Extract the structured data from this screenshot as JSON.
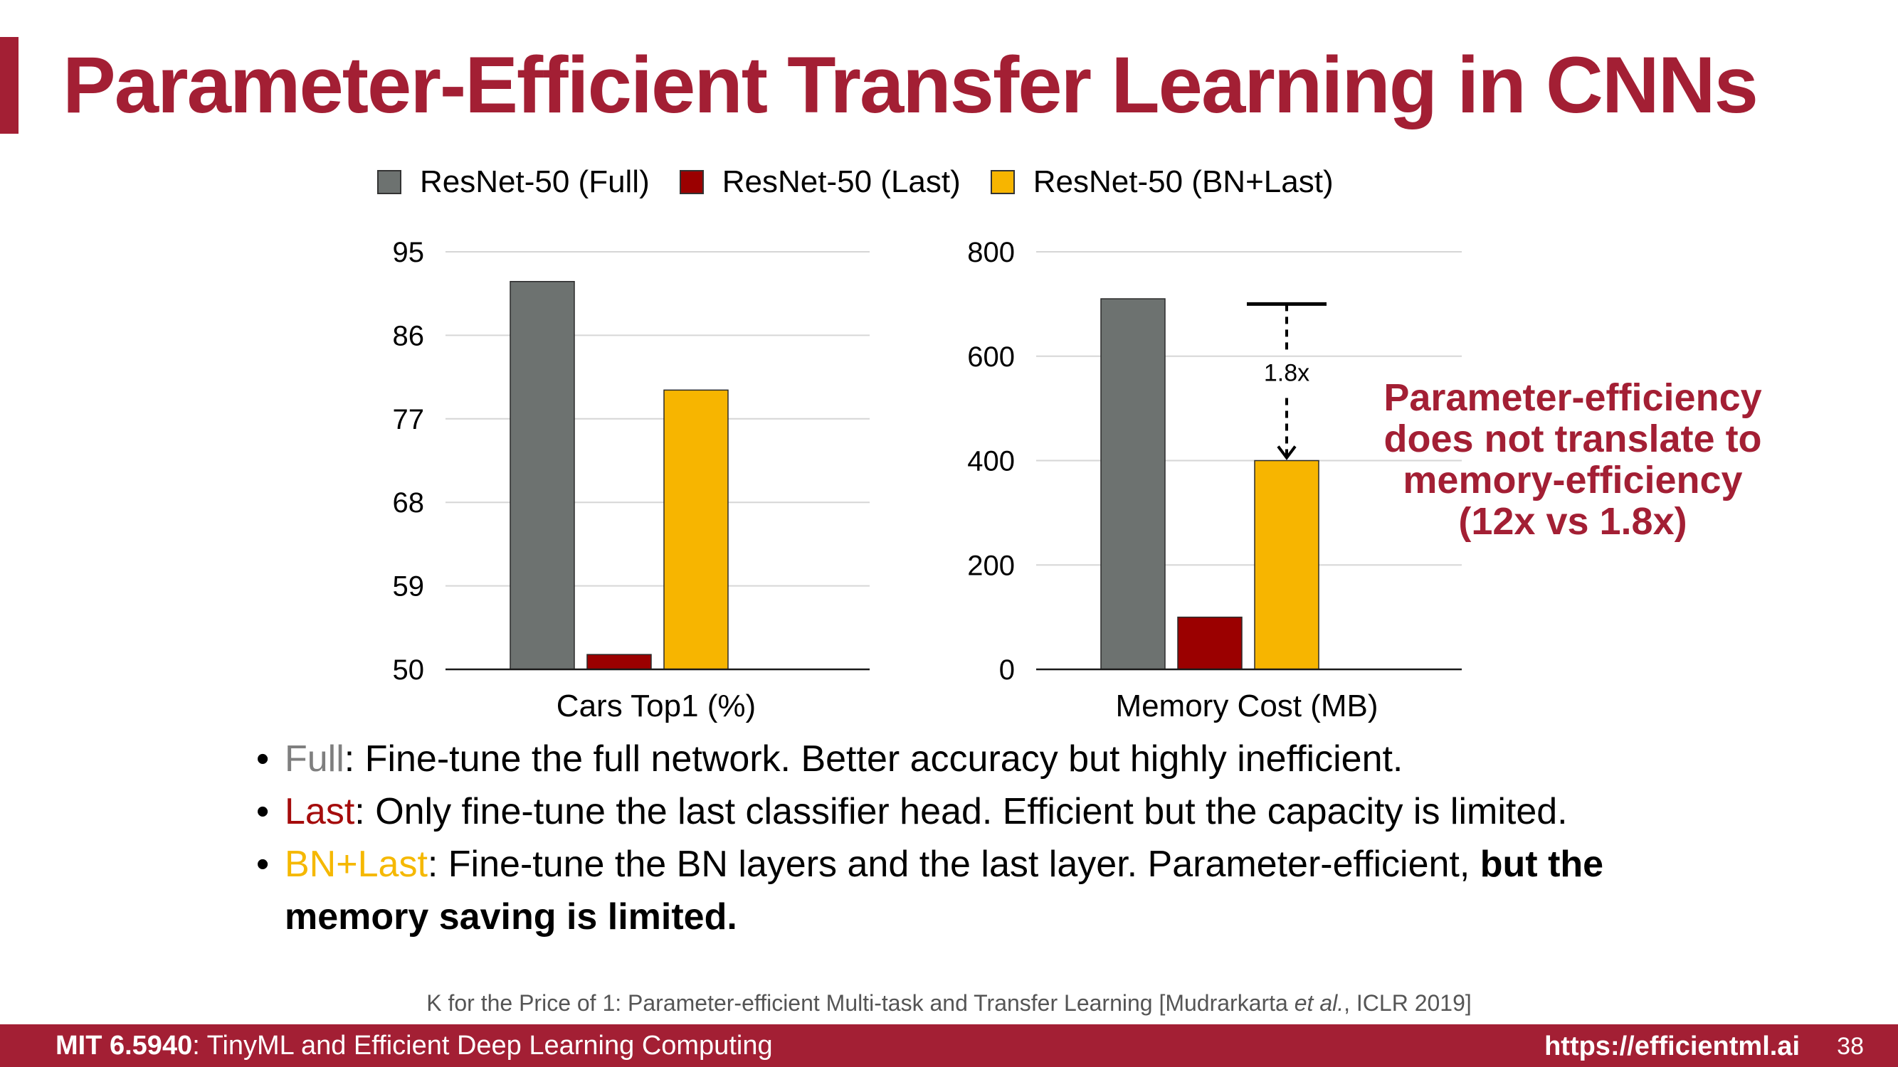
{
  "slide": {
    "title": "Parameter-Efficient Transfer Learning in CNNs",
    "accent_color": "#a31f34"
  },
  "legend": [
    {
      "label": "ResNet-50 (Full)",
      "color": "#6d7270"
    },
    {
      "label": "ResNet-50 (Last)",
      "color": "#9b0000"
    },
    {
      "label": "ResNet-50 (BN+Last)",
      "color": "#f7b500"
    }
  ],
  "chart_data": [
    {
      "type": "bar",
      "xlabel": "Cars Top1 (%)",
      "ylabel": "",
      "ylim": [
        50,
        95
      ],
      "yticks": [
        50,
        59,
        68,
        77,
        86,
        95
      ],
      "grid": true,
      "series": [
        {
          "name": "ResNet-50 (Full)",
          "values": [
            91.8
          ],
          "color": "#6d7270"
        },
        {
          "name": "ResNet-50 (Last)",
          "values": [
            51.6
          ],
          "color": "#9b0000"
        },
        {
          "name": "ResNet-50 (BN+Last)",
          "values": [
            80.1
          ],
          "color": "#f7b500"
        }
      ]
    },
    {
      "type": "bar",
      "xlabel": "Memory Cost (MB)",
      "ylabel": "",
      "ylim": [
        0,
        800
      ],
      "yticks": [
        0,
        200,
        400,
        600,
        800
      ],
      "grid": true,
      "series": [
        {
          "name": "ResNet-50 (Full)",
          "values": [
            710
          ],
          "color": "#6d7270"
        },
        {
          "name": "ResNet-50 (Last)",
          "values": [
            100
          ],
          "color": "#9b0000"
        },
        {
          "name": "ResNet-50 (BN+Last)",
          "values": [
            400
          ],
          "color": "#f7b500"
        }
      ],
      "annotation": {
        "text": "1.8x",
        "from_value": 700,
        "to_value": 400
      }
    }
  ],
  "callout": {
    "lines": [
      "Parameter-efficiency",
      "does not translate to",
      "memory-efficiency",
      "(12x vs 1.8x)"
    ]
  },
  "bullets": [
    {
      "keyword": "Full",
      "text": ": Fine-tune the full network. Better accuracy but highly inefficient.",
      "bold_tail": ""
    },
    {
      "keyword": "Last",
      "text": ": Only fine-tune the last classifier head. Efficient but the capacity is limited.",
      "bold_tail": ""
    },
    {
      "keyword": "BN+Last",
      "text": ": Fine-tune the BN layers and the last layer. Parameter-efficient, ",
      "bold_tail": "but the memory saving is limited."
    }
  ],
  "citation": {
    "pre": "K for the Price of 1: Parameter-efficient Multi-task and Transfer Learning [Mudrarkarta ",
    "italic": "et al.",
    "post": ", ICLR 2019]"
  },
  "footer": {
    "course": "MIT 6.5940",
    "course_title": ": TinyML and Efficient Deep Learning Computing",
    "url": "https://efficientml.ai",
    "page": "38"
  }
}
